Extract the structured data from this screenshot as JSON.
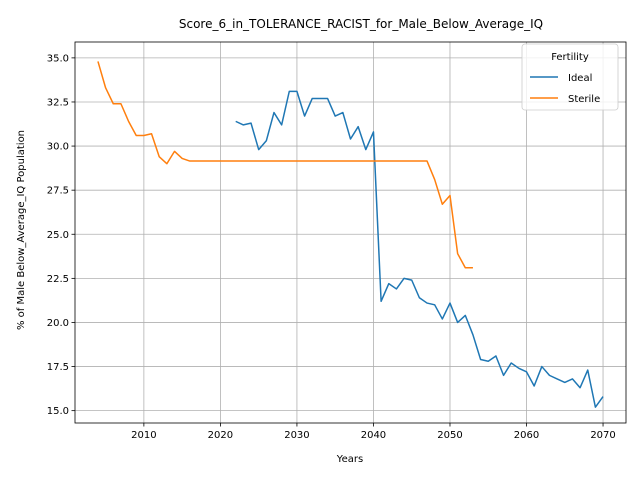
{
  "chart_data": {
    "type": "line",
    "title": "Score_6_in_TOLERANCE_RACIST_for_Male_Below_Average_IQ",
    "xlabel": "Years",
    "ylabel": "% of Male Below_Average_IQ Population",
    "xlim": [
      2001,
      2073
    ],
    "ylim": [
      14.3,
      35.9
    ],
    "xticks": [
      2010,
      2020,
      2030,
      2040,
      2050,
      2060,
      2070
    ],
    "yticks": [
      15.0,
      17.5,
      20.0,
      22.5,
      25.0,
      27.5,
      30.0,
      32.5,
      35.0
    ],
    "xtick_labels": [
      "2010",
      "2020",
      "2030",
      "2040",
      "2050",
      "2060",
      "2070"
    ],
    "ytick_labels": [
      "15.0",
      "17.5",
      "20.0",
      "22.5",
      "25.0",
      "27.5",
      "30.0",
      "32.5",
      "35.0"
    ],
    "grid": true,
    "legend": {
      "title": "Fertility",
      "placement": "top-right"
    },
    "series": [
      {
        "name": "Ideal",
        "color": "#1f77b4",
        "x": [
          2022,
          2023,
          2024,
          2025,
          2026,
          2027,
          2028,
          2029,
          2030,
          2031,
          2032,
          2033,
          2034,
          2035,
          2036,
          2037,
          2038,
          2039,
          2040,
          2041,
          2042,
          2043,
          2044,
          2045,
          2046,
          2047,
          2048,
          2049,
          2050,
          2051,
          2052,
          2053,
          2054,
          2055,
          2056,
          2057,
          2058,
          2059,
          2060,
          2061,
          2062,
          2063,
          2064,
          2065,
          2066,
          2067,
          2068,
          2069,
          2070
        ],
        "y": [
          31.4,
          31.2,
          31.3,
          29.8,
          30.3,
          31.9,
          31.2,
          33.1,
          33.1,
          31.7,
          32.7,
          32.7,
          32.7,
          31.7,
          31.9,
          30.4,
          31.1,
          29.8,
          30.8,
          21.2,
          22.2,
          21.9,
          22.5,
          22.4,
          21.4,
          21.1,
          21.0,
          20.2,
          21.1,
          20.0,
          20.4,
          19.3,
          17.9,
          17.8,
          18.1,
          17.0,
          17.7,
          17.4,
          17.2,
          16.4,
          17.5,
          17.0,
          16.8,
          16.6,
          16.8,
          16.3,
          17.3,
          15.2,
          15.8
        ]
      },
      {
        "name": "Sterile",
        "color": "#ff7f0e",
        "x": [
          2004,
          2005,
          2006,
          2007,
          2008,
          2009,
          2010,
          2011,
          2012,
          2013,
          2014,
          2015,
          2016,
          2017,
          2018,
          2019,
          2020,
          2021,
          2022,
          2023,
          2024,
          2025,
          2026,
          2027,
          2028,
          2029,
          2030,
          2031,
          2032,
          2033,
          2034,
          2035,
          2036,
          2037,
          2038,
          2039,
          2040,
          2041,
          2042,
          2043,
          2044,
          2045,
          2046,
          2047,
          2048,
          2049,
          2050,
          2051,
          2052,
          2053
        ],
        "y": [
          34.8,
          33.3,
          32.4,
          32.4,
          31.4,
          30.6,
          30.6,
          30.7,
          29.4,
          29.0,
          29.7,
          29.3,
          29.15,
          29.15,
          29.15,
          29.15,
          29.15,
          29.15,
          29.15,
          29.15,
          29.15,
          29.15,
          29.15,
          29.15,
          29.15,
          29.15,
          29.15,
          29.15,
          29.15,
          29.15,
          29.15,
          29.15,
          29.15,
          29.15,
          29.15,
          29.15,
          29.15,
          29.15,
          29.15,
          29.15,
          29.15,
          29.15,
          29.15,
          29.15,
          28.1,
          26.7,
          27.2,
          23.9,
          23.1,
          23.1
        ]
      }
    ]
  }
}
